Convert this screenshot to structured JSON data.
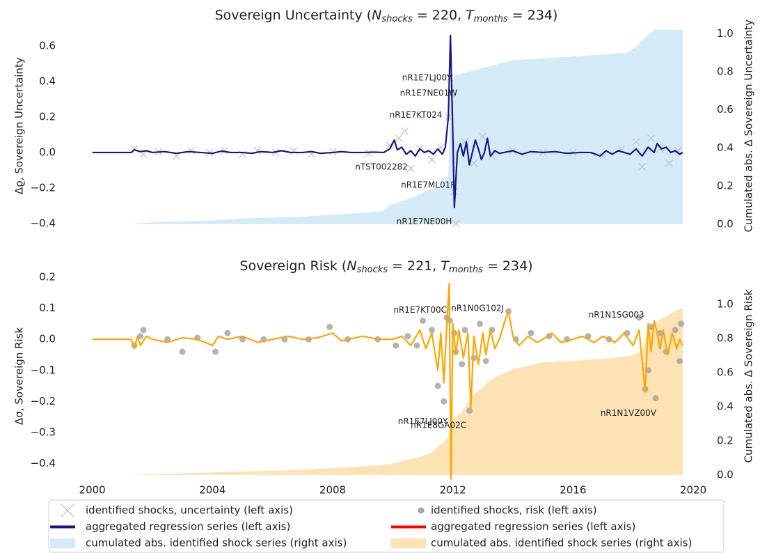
{
  "chart_data": [
    {
      "type": "line",
      "title": [
        {
          "text": "Sovereign Uncertainty ("
        },
        {
          "text": "N",
          "style": "italic"
        },
        {
          "text": "shocks",
          "style": "sub"
        },
        {
          "text": " = 220, "
        },
        {
          "text": "T",
          "style": "italic"
        },
        {
          "text": "months",
          "style": "sub"
        },
        {
          "text": " = 234)"
        }
      ],
      "ylabel": "Δϱ, Sovereign Uncertainty",
      "y2label": "Cumulated abs. Δ Sovereign Uncertainty",
      "xlim": [
        1999.8,
        2020.3
      ],
      "ylim": [
        -0.42,
        0.72
      ],
      "yticks": [
        {
          "value": -0.4,
          "label": "−0.4"
        },
        {
          "value": -0.2,
          "label": "−0.2"
        },
        {
          "value": 0,
          "label": "0.0"
        },
        0.2,
        0.4,
        0.6
      ],
      "y2lim": [
        -0.015,
        1.047
      ],
      "y2ticks": [
        {
          "value": 0,
          "label": "0.0"
        },
        0.2,
        0.4,
        0.6,
        0.8,
        {
          "value": 1,
          "label": "1.0"
        }
      ],
      "series": [
        {
          "name": "identified shocks, uncertainty (left axis)",
          "type": "scatter",
          "marker": "x",
          "color": "#c4c4c4",
          "x": [
            2001.4,
            2001.7,
            2002.2,
            2002.8,
            2003.3,
            2003.9,
            2004.4,
            2005.0,
            2005.5,
            2006.1,
            2006.7,
            2007.3,
            2008.0,
            2009.2,
            2009.9,
            2010.2,
            2010.4,
            2010.6,
            2010.9,
            2011.3,
            2011.6,
            2011.85,
            2011.9,
            2011.95,
            2012.05,
            2012.1,
            2012.4,
            2012.7,
            2013.0,
            2013.3,
            2014.0,
            2015.0,
            2016.0,
            2017.0,
            2017.6,
            2018.1,
            2018.3,
            2018.6,
            2018.9,
            2019.2,
            2019.5
          ],
          "values": [
            0.02,
            -0.01,
            0.005,
            -0.02,
            0.01,
            0,
            0.01,
            -0.01,
            0.01,
            0,
            0.01,
            -0.01,
            0.005,
            -0.005,
            0.04,
            0.08,
            0.12,
            -0.09,
            0.02,
            -0.04,
            0.03,
            0.2,
            0.42,
            0.33,
            -0.22,
            -0.4,
            0.06,
            -0.06,
            0.09,
            -0.02,
            0.01,
            0,
            0,
            -0.02,
            0.02,
            0.06,
            -0.08,
            0.08,
            0.02,
            -0.06,
            0.01
          ]
        },
        {
          "name": "aggregated regression series (left axis)",
          "type": "line",
          "color": "#16168a",
          "x": [
            2000.0,
            2001.3,
            2001.4,
            2001.6,
            2001.8,
            2002.0,
            2002.4,
            2002.8,
            2003.2,
            2003.6,
            2004.0,
            2004.3,
            2004.6,
            2005.0,
            2005.3,
            2005.6,
            2006.0,
            2006.3,
            2006.6,
            2007.0,
            2007.3,
            2007.6,
            2008.0,
            2008.3,
            2008.6,
            2009.0,
            2009.4,
            2009.7,
            2009.9,
            2010.05,
            2010.15,
            2010.3,
            2010.45,
            2010.6,
            2010.75,
            2010.9,
            2011.05,
            2011.2,
            2011.35,
            2011.5,
            2011.65,
            2011.75,
            2011.85,
            2011.92,
            2012.0,
            2012.05,
            2012.15,
            2012.25,
            2012.35,
            2012.45,
            2012.55,
            2012.65,
            2012.75,
            2012.85,
            2012.95,
            2013.05,
            2013.15,
            2013.25,
            2013.4,
            2013.55,
            2013.7,
            2014.0,
            2014.3,
            2014.6,
            2015.0,
            2015.4,
            2015.8,
            2016.2,
            2016.6,
            2016.9,
            2017.1,
            2017.3,
            2017.5,
            2017.7,
            2017.9,
            2018.1,
            2018.3,
            2018.5,
            2018.7,
            2018.8,
            2018.95,
            2019.1,
            2019.25,
            2019.4,
            2019.55,
            2019.65
          ],
          "values": [
            0,
            0,
            0.015,
            0.005,
            0.01,
            0,
            0.005,
            -0.005,
            0.005,
            0,
            -0.005,
            0.008,
            0,
            0,
            -0.005,
            0.005,
            0,
            0.01,
            0,
            0,
            0.005,
            -0.005,
            0,
            0.005,
            0,
            0,
            0.002,
            0,
            0.02,
            0.07,
            0.015,
            0.03,
            -0.01,
            0.01,
            -0.02,
            0.02,
            0,
            0.01,
            -0.01,
            0.02,
            -0.01,
            0.03,
            0.2,
            0.66,
            0.1,
            -0.31,
            0,
            0.05,
            -0.02,
            0.06,
            -0.07,
            0,
            0.07,
            0.02,
            -0.04,
            0,
            0.08,
            -0.02,
            0.01,
            -0.005,
            0,
            0.01,
            -0.01,
            0.005,
            0,
            0.005,
            -0.005,
            0,
            0,
            -0.02,
            0.01,
            -0.01,
            0.01,
            0,
            -0.01,
            0.02,
            -0.02,
            0.03,
            0,
            0.05,
            0.02,
            0.03,
            0,
            0.01,
            -0.01,
            0
          ]
        },
        {
          "name": "cumulated abs. identified shock series (right axis)",
          "type": "area",
          "axis": "y2",
          "color": "#d4ebf7",
          "x": [
            2001.2,
            2002,
            2003,
            2004,
            2005,
            2006,
            2007,
            2008,
            2009,
            2009.7,
            2009.9,
            2010.3,
            2010.8,
            2011.2,
            2011.6,
            2011.85,
            2011.9,
            2011.95,
            2012.05,
            2012.5,
            2013,
            2013.5,
            2014,
            2015,
            2016,
            2017,
            2017.8,
            2018.1,
            2018.4,
            2018.7,
            2019.65
          ],
          "values": [
            0,
            0.01,
            0.015,
            0.02,
            0.03,
            0.035,
            0.04,
            0.05,
            0.06,
            0.07,
            0.1,
            0.12,
            0.15,
            0.18,
            0.2,
            0.25,
            0.62,
            0.72,
            0.78,
            0.8,
            0.82,
            0.84,
            0.86,
            0.87,
            0.88,
            0.89,
            0.9,
            0.93,
            0.98,
            1.02,
            1.02
          ]
        }
      ],
      "annotations": [
        {
          "text": "nR1E7LJ00Y",
          "x": 2011.97,
          "y": 0.42
        },
        {
          "text": "nR1E7NE01W",
          "x": 2012.15,
          "y": 0.333
        },
        {
          "text": "nR1E7KT024",
          "x": 2011.65,
          "y": 0.21
        },
        {
          "text": "nTST002282",
          "x": 2010.5,
          "y": -0.082
        },
        {
          "text": "nR1E7ML01F",
          "x": 2012.08,
          "y": -0.185
        },
        {
          "text": "nR1E7NE00H",
          "x": 2011.97,
          "y": -0.39
        }
      ]
    },
    {
      "type": "line",
      "title": [
        {
          "text": "Sovereign Risk ("
        },
        {
          "text": "N",
          "style": "italic"
        },
        {
          "text": "shocks",
          "style": "sub"
        },
        {
          "text": " = 221, "
        },
        {
          "text": "T",
          "style": "italic"
        },
        {
          "text": "months",
          "style": "sub"
        },
        {
          "text": " = 234)"
        }
      ],
      "ylabel": "Δσ, Sovereign Risk",
      "y2label": "Cumulated abs. Δ Sovereign Risk",
      "xlim": [
        1999.8,
        2020.3
      ],
      "xticks": [
        2000,
        2004,
        2008,
        2012,
        2016,
        2020
      ],
      "ylim": [
        -0.455,
        0.218
      ],
      "yticks": [
        0.2,
        0.1,
        {
          "value": 0,
          "label": "0.0"
        },
        {
          "value": -0.1,
          "label": "−0.1"
        },
        {
          "value": -0.2,
          "label": "−0.2"
        },
        {
          "value": -0.3,
          "label": "−0.3"
        },
        {
          "value": -0.4,
          "label": "−0.4"
        }
      ],
      "y2lim": [
        -0.033,
        1.192
      ],
      "y2ticks": [
        {
          "value": 0,
          "label": "0.0"
        },
        0.2,
        0.4,
        0.6,
        0.8,
        {
          "value": 1,
          "label": "1.0"
        }
      ],
      "series": [
        {
          "name": "identified shocks, risk (left axis)",
          "type": "scatter",
          "marker": "o",
          "color": "#a6a6a6",
          "x": [
            2001.4,
            2001.6,
            2001.7,
            2002.5,
            2003,
            2003.5,
            2004.1,
            2004.5,
            2005,
            2005.7,
            2006.4,
            2007.2,
            2007.9,
            2008.5,
            2009.5,
            2010.1,
            2010.5,
            2010.8,
            2011,
            2011.3,
            2011.5,
            2011.7,
            2011.8,
            2011.9,
            2012.05,
            2012.1,
            2012.3,
            2012.4,
            2012.55,
            2012.7,
            2012.9,
            2013.1,
            2013.3,
            2013.85,
            2014.1,
            2014.6,
            2015.2,
            2015.8,
            2016.5,
            2017.2,
            2017.8,
            2018.2,
            2018.4,
            2018.5,
            2018.6,
            2018.75,
            2018.9,
            2019.1,
            2019.4,
            2019.55,
            2019.6
          ],
          "values": [
            -0.02,
            0.01,
            0.03,
            0,
            -0.04,
            0.005,
            -0.04,
            0.02,
            0,
            0,
            0,
            0,
            0.04,
            0,
            0,
            -0.02,
            0.01,
            -0.02,
            0.06,
            0.03,
            -0.15,
            -0.2,
            0.07,
            0.06,
            0.02,
            -0.04,
            -0.08,
            0.03,
            -0.23,
            -0.06,
            0.05,
            -0.07,
            0.03,
            0.09,
            0,
            0.02,
            0.01,
            0,
            0.01,
            0,
            0.02,
            0.07,
            -0.16,
            -0.1,
            0.04,
            -0.19,
            0.02,
            -0.04,
            0.03,
            -0.07,
            0.05
          ]
        },
        {
          "name": "aggregated regression series (left axis)",
          "type": "line",
          "color": "#ffa500",
          "legend_color": "#ff0000",
          "x": [
            2000,
            2001.3,
            2001.4,
            2001.5,
            2001.6,
            2001.8,
            2002,
            2002.5,
            2003,
            2003.5,
            2004,
            2004.2,
            2004.5,
            2005,
            2005.5,
            2006,
            2006.5,
            2007,
            2007.5,
            2008,
            2008.3,
            2009,
            2009.5,
            2010,
            2010.3,
            2010.6,
            2010.9,
            2011.1,
            2011.3,
            2011.5,
            2011.6,
            2011.7,
            2011.8,
            2011.88,
            2011.94,
            2012,
            2012.1,
            2012.2,
            2012.35,
            2012.5,
            2012.6,
            2012.7,
            2012.85,
            2013,
            2013.1,
            2013.25,
            2013.4,
            2013.55,
            2013.7,
            2013.85,
            2014,
            2014.2,
            2014.5,
            2014.8,
            2015,
            2015.3,
            2015.6,
            2016,
            2016.3,
            2016.7,
            2017,
            2017.4,
            2017.7,
            2018,
            2018.2,
            2018.4,
            2018.5,
            2018.6,
            2018.7,
            2018.8,
            2018.9,
            2019,
            2019.15,
            2019.3,
            2019.45,
            2019.55,
            2019.65
          ],
          "values": [
            0,
            0,
            -0.03,
            0.01,
            -0.02,
            0.01,
            0,
            -0.01,
            0.005,
            0,
            -0.02,
            0.01,
            0,
            0.01,
            -0.01,
            0,
            0.01,
            0,
            0.005,
            0.02,
            -0.005,
            0.01,
            0,
            0,
            0.01,
            -0.02,
            0.03,
            -0.03,
            0.02,
            -0.1,
            0.02,
            -0.14,
            0.05,
            0.18,
            -0.45,
            0.05,
            -0.05,
            0.03,
            -0.06,
            0.02,
            -0.22,
            0.01,
            -0.08,
            0.02,
            -0.05,
            0.03,
            -0.03,
            0,
            0.05,
            0.09,
            0.01,
            -0.02,
            0.01,
            -0.01,
            0,
            0.02,
            -0.01,
            0,
            0.01,
            -0.01,
            0.01,
            -0.01,
            0.02,
            -0.02,
            0.03,
            -0.17,
            0.05,
            -0.04,
            0.06,
            0.02,
            -0.03,
            0.03,
            -0.05,
            0.02,
            -0.03,
            0,
            -0.02
          ]
        },
        {
          "name": "cumulated abs. identified shock series (right axis)",
          "type": "area",
          "axis": "y2",
          "color": "#fde2b4",
          "x": [
            2001.2,
            2002,
            2003,
            2004,
            2005,
            2006,
            2007,
            2008,
            2009,
            2009.8,
            2010.3,
            2010.8,
            2011.3,
            2011.6,
            2011.85,
            2011.95,
            2012.1,
            2012.3,
            2012.6,
            2012.9,
            2013.2,
            2013.5,
            2014,
            2014.5,
            2015,
            2016,
            2017,
            2017.5,
            2018,
            2018.3,
            2018.5,
            2018.8,
            2019.2,
            2019.65
          ],
          "values": [
            0,
            0.005,
            0.01,
            0.015,
            0.02,
            0.025,
            0.03,
            0.04,
            0.05,
            0.06,
            0.08,
            0.1,
            0.13,
            0.18,
            0.22,
            0.3,
            0.34,
            0.37,
            0.46,
            0.5,
            0.55,
            0.58,
            0.62,
            0.64,
            0.66,
            0.67,
            0.68,
            0.69,
            0.7,
            0.73,
            0.85,
            0.9,
            0.94,
            0.98
          ]
        }
      ],
      "annotations": [
        {
          "text": "nR1E7KT00C",
          "x": 2011.8,
          "y": 0.094
        },
        {
          "text": "nR1N0G102J",
          "x": 2013.7,
          "y": 0.099
        },
        {
          "text": "nR1N1SG003",
          "x": 2018.37,
          "y": 0.078
        },
        {
          "text": "nR1E7LJ00Y",
          "x": 2011.83,
          "y": -0.265
        },
        {
          "text": "nR1E8GA02C",
          "x": 2012.45,
          "y": -0.278
        },
        {
          "text": "nR1N1VZ00V",
          "x": 2018.77,
          "y": -0.238
        }
      ]
    }
  ]
}
